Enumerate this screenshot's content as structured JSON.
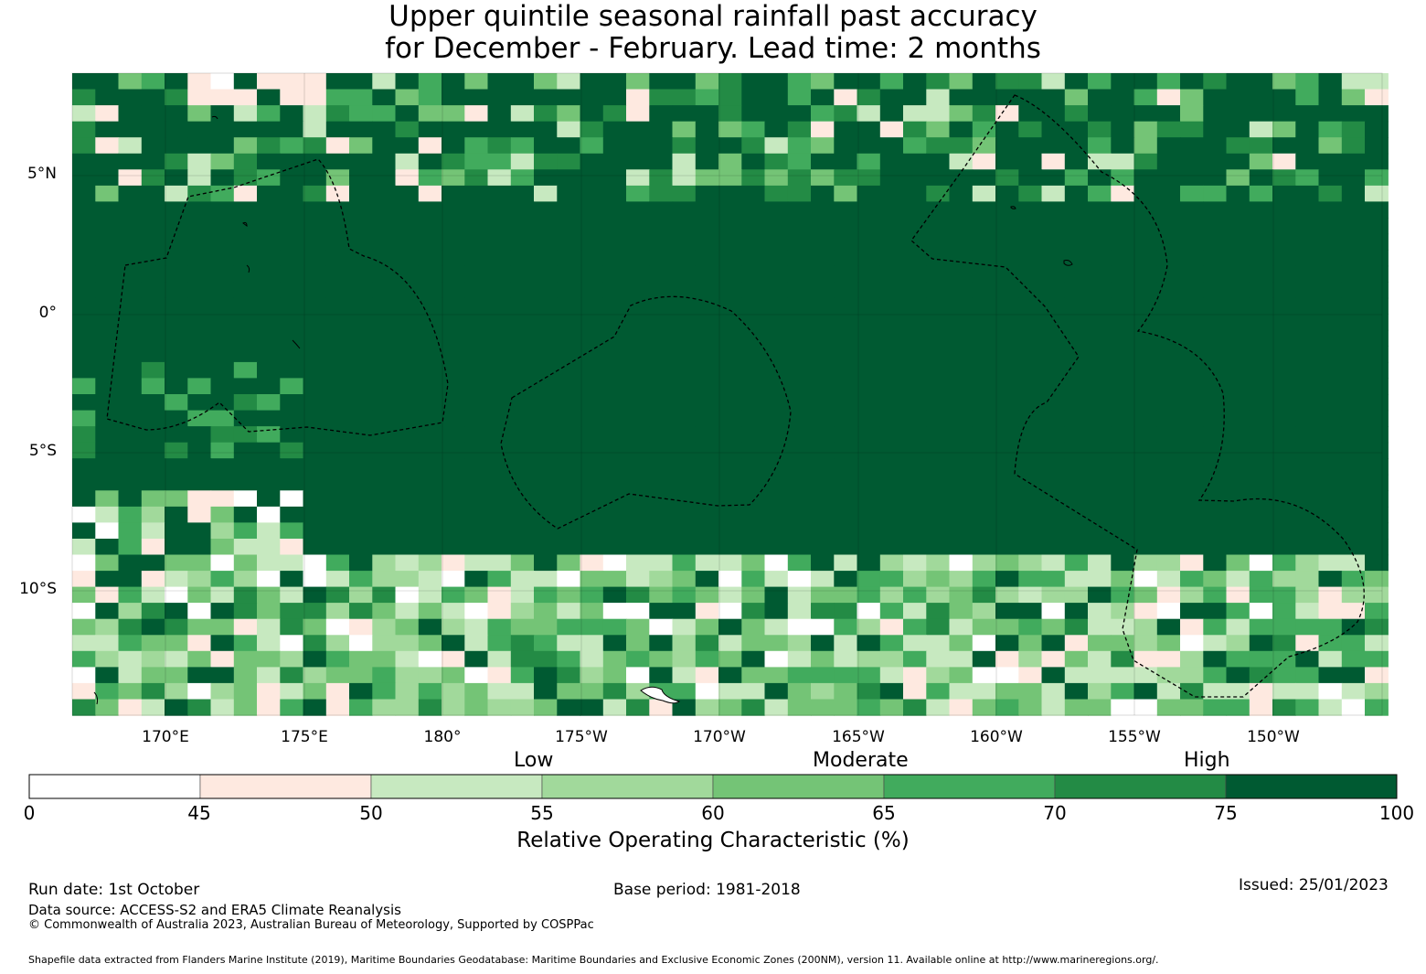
{
  "title": {
    "line1": "Upper quintile seasonal rainfall past accuracy",
    "line2": "for December - February. Lead time: 2 months"
  },
  "map": {
    "lat_labels": [
      "5°N",
      "0°",
      "5°S",
      "10°S"
    ],
    "lon_labels": [
      "170°E",
      "175°E",
      "180°",
      "175°W",
      "170°W",
      "165°W",
      "160°W",
      "155°W",
      "150°W"
    ],
    "colors": [
      "#ffffff",
      "#fee9e0",
      "#c7e9c0",
      "#a1d99b",
      "#74c476",
      "#41ab5d",
      "#238b45",
      "#005a32"
    ]
  },
  "colorbar": {
    "categories": [
      "Low",
      "Moderate",
      "High"
    ],
    "ticks": [
      "0",
      "45",
      "50",
      "55",
      "60",
      "65",
      "70",
      "75",
      "100"
    ],
    "title": "Relative Operating Characteristic (%)"
  },
  "footer": {
    "run_date": "Run date: 1st October",
    "base_period": "Base period: 1981-2018",
    "issued": "Issued: 25/01/2023",
    "data_source": "Data source: ACCESS-S2 and ERA5 Climate Reanalysis",
    "copyright": "© Commonwealth of Australia 2023, Australian Bureau of Meteorology, Supported by COSPPac",
    "shapefile": "Shapefile data extracted from Flanders Marine Institute (2019), Maritime Boundaries Geodatabase: Maritime Boundaries and Exclusive Economic Zones (200NM), version 11. Available online at http://www.marineregions.org/."
  }
}
